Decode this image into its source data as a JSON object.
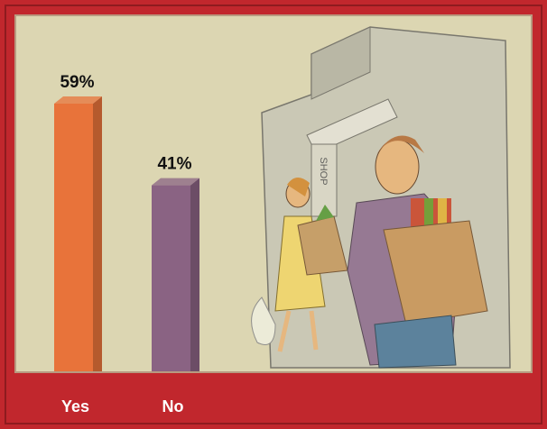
{
  "chart_data": {
    "type": "bar",
    "categories": [
      "Yes",
      "No"
    ],
    "values": [
      59,
      41
    ],
    "value_labels": [
      "59%",
      "41%"
    ],
    "colors": [
      "#e8733a",
      "#8a6383"
    ]
  }
}
